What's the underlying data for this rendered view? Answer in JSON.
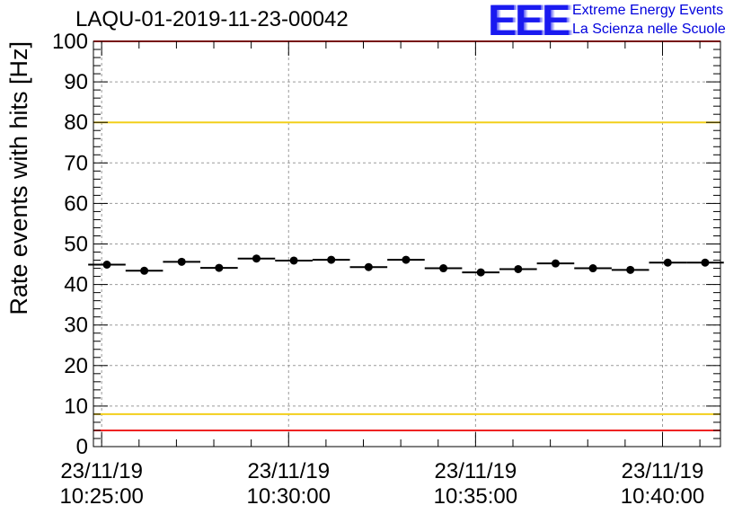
{
  "title": "LAQU-01-2019-11-23-00042",
  "logo": {
    "letters": "EEE",
    "line1": "Extreme Energy Events",
    "line2": "La Scienza nelle Scuole"
  },
  "colors": {
    "red_line": "#ee2222",
    "yellow_line": "#f2cf1b",
    "logo_blue": "#1a1af0",
    "grid": "#9a9a9a"
  },
  "chart_data": {
    "type": "scatter",
    "title": "LAQU-01-2019-11-23-00042",
    "ylabel": "Rate events with hits [Hz]",
    "xlabel": "",
    "ylim": [
      0,
      100
    ],
    "yticks": [
      0,
      10,
      20,
      30,
      40,
      50,
      60,
      70,
      80,
      90,
      100
    ],
    "x_unit": "minutes after 10:25:00",
    "xlim": [
      -0.22,
      16.55
    ],
    "xticks": [
      {
        "x": 0,
        "date": "23/11/19",
        "time": "10:25:00"
      },
      {
        "x": 5,
        "date": "23/11/19",
        "time": "10:30:00"
      },
      {
        "x": 10,
        "date": "23/11/19",
        "time": "10:35:00"
      },
      {
        "x": 15,
        "date": "23/11/19",
        "time": "10:40:00"
      }
    ],
    "bin_width_min": 1.0,
    "series": [
      {
        "name": "rate",
        "x": [
          0.14,
          1.14,
          2.14,
          3.14,
          4.14,
          5.14,
          6.14,
          7.14,
          8.14,
          9.14,
          10.14,
          11.14,
          12.14,
          13.14,
          14.14,
          15.14,
          16.14
        ],
        "values": [
          44.9,
          43.4,
          45.6,
          44.1,
          46.4,
          45.9,
          46.1,
          44.3,
          46.1,
          44.0,
          43.0,
          43.8,
          45.2,
          44.0,
          43.6,
          45.4,
          45.4
        ]
      }
    ],
    "reference_lines": [
      {
        "name": "upper-limit",
        "y": 100,
        "color": "red"
      },
      {
        "name": "upper-warning",
        "y": 80,
        "color": "yellow"
      },
      {
        "name": "lower-warning",
        "y": 8,
        "color": "yellow"
      },
      {
        "name": "lower-limit",
        "y": 4,
        "color": "red"
      }
    ],
    "grid": true
  }
}
